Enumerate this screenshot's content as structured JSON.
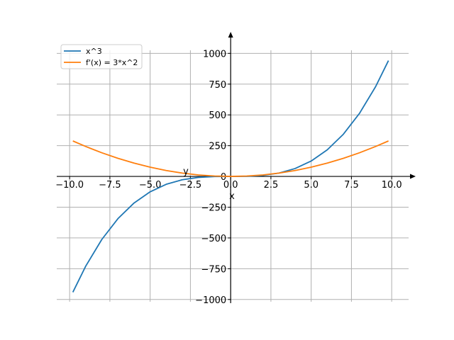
{
  "chart_data": {
    "type": "line",
    "title": "",
    "xlabel": "x",
    "ylabel": "y",
    "xlim": [
      -10.8,
      11.05
    ],
    "ylim": [
      -1030,
      1140
    ],
    "grid": true,
    "legend_position": "top-left",
    "x_ticks": [
      -10,
      -7.5,
      -5,
      -2.5,
      0,
      2.5,
      5,
      7.5,
      10
    ],
    "x_tick_labels": [
      "−10.0",
      "−7.5",
      "−5.0",
      "−2.5",
      "0.0",
      "2.5",
      "5.0",
      "7.5",
      "10.0"
    ],
    "y_ticks": [
      -1000,
      -750,
      -500,
      -250,
      0,
      250,
      500,
      750,
      1000
    ],
    "y_tick_labels": [
      "−1000",
      "−750",
      "−500",
      "−250",
      "0",
      "250",
      "500",
      "750",
      "1000"
    ],
    "series": [
      {
        "name": "x^3",
        "color": "#1f77b4",
        "x": [
          -9.8,
          -9.0,
          -8.0,
          -7.0,
          -6.0,
          -5.0,
          -4.0,
          -3.0,
          -2.0,
          -1.0,
          0.0,
          1.0,
          2.0,
          3.0,
          4.0,
          5.0,
          6.0,
          7.0,
          8.0,
          9.0,
          9.8
        ],
        "y": [
          -941.2,
          -729,
          -512,
          -343,
          -216,
          -125,
          -64,
          -27,
          -8,
          -1,
          0,
          1,
          8,
          27,
          64,
          125,
          216,
          343,
          512,
          729,
          941.2
        ]
      },
      {
        "name": "f'(x) = 3*x^2",
        "color": "#ff7f0e",
        "x": [
          -9.8,
          -9.0,
          -8.0,
          -7.0,
          -6.0,
          -5.0,
          -4.0,
          -3.0,
          -2.0,
          -1.0,
          0.0,
          1.0,
          2.0,
          3.0,
          4.0,
          5.0,
          6.0,
          7.0,
          8.0,
          9.0,
          9.8
        ],
        "y": [
          288.1,
          243,
          192,
          147,
          108,
          75,
          48,
          27,
          12,
          3,
          0,
          3,
          12,
          27,
          48,
          75,
          108,
          147,
          192,
          243,
          288.1
        ]
      }
    ]
  }
}
